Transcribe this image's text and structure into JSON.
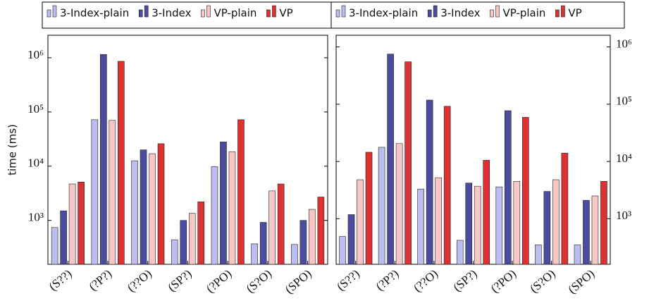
{
  "chart_data": [
    {
      "type": "bar",
      "log_scale": true,
      "y_axis_side": "left",
      "ylabel": "time (ms)",
      "categories": [
        "(S??)",
        "(?P?)",
        "(??O)",
        "(SP?)",
        "(?PO)",
        "(S?O)",
        "(SPO)"
      ],
      "ylim": [
        155,
        2600000
      ],
      "yticks": [
        {
          "value": 1000,
          "label": "10³"
        },
        {
          "value": 10000,
          "label": "10⁴"
        },
        {
          "value": 100000,
          "label": "10⁵"
        },
        {
          "value": 1000000,
          "label": "10⁶"
        }
      ],
      "series": [
        {
          "name": "3-Index-plain",
          "color": "#bdbdf2",
          "values": [
            740,
            72000,
            12600,
            440,
            9800,
            370,
            360
          ]
        },
        {
          "name": "3-Index",
          "color": "#4b4b9f",
          "values": [
            1500,
            1150000,
            20000,
            1000,
            28000,
            920,
            1000
          ]
        },
        {
          "name": "VP-plain",
          "color": "#f9c6c6",
          "values": [
            4700,
            70000,
            17000,
            1350,
            18500,
            3500,
            1600
          ]
        },
        {
          "name": "VP",
          "color": "#dc3232",
          "values": [
            5100,
            860000,
            26000,
            2200,
            72000,
            4700,
            2700
          ]
        }
      ]
    },
    {
      "type": "bar",
      "log_scale": true,
      "y_axis_side": "right",
      "categories": [
        "(S??)",
        "(?P?)",
        "(??O)",
        "(SP?)",
        "(?PO)",
        "(S?O)",
        "(SPO)"
      ],
      "ylim": [
        160,
        1600000
      ],
      "yticks": [
        {
          "value": 1000,
          "label": "10³"
        },
        {
          "value": 10000,
          "label": "10⁴"
        },
        {
          "value": 100000,
          "label": "10⁵"
        },
        {
          "value": 1000000,
          "label": "10⁶"
        }
      ],
      "series": [
        {
          "name": "3-Index-plain",
          "color": "#bdbdf2",
          "values": [
            490,
            17700,
            3300,
            420,
            3600,
            350,
            350
          ]
        },
        {
          "name": "3-Index",
          "color": "#4b4b9f",
          "values": [
            1180,
            750000,
            118000,
            4200,
            77000,
            3000,
            2100
          ]
        },
        {
          "name": "VP-plain",
          "color": "#f9c6c6",
          "values": [
            4800,
            20500,
            5200,
            3700,
            4500,
            4800,
            2500
          ]
        },
        {
          "name": "VP",
          "color": "#dc3232",
          "values": [
            14500,
            550000,
            92000,
            10500,
            59000,
            14000,
            4500
          ]
        }
      ]
    }
  ]
}
